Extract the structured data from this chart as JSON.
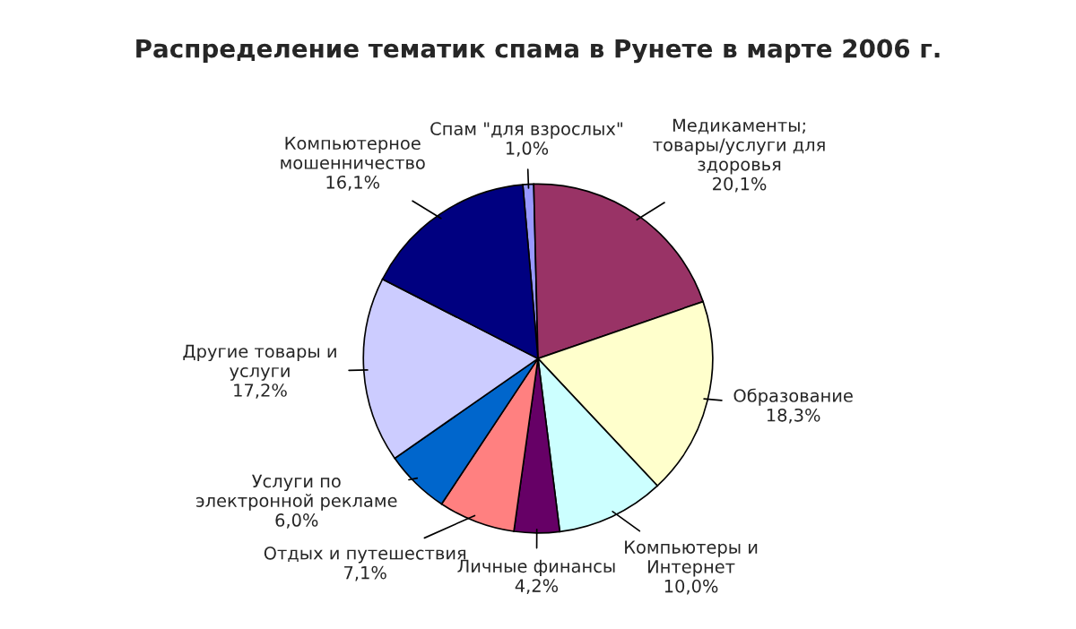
{
  "chart_data": {
    "type": "pie",
    "title": "Распределение тематик спама в Рунете в марте 2006 г.",
    "categories": [
      "Спам \"для взрослых\"",
      "Медикаменты;\nтовары/услуги для\nздоровья",
      "Образование",
      "Компьютеры и\nИнтернет",
      "Личные финансы",
      "Отдых и путешествия",
      "Услуги по\nэлектронной рекламе",
      "Другие товары и\nуслуги",
      "Компьютерное\nмошенничество"
    ],
    "values": [
      1.0,
      20.1,
      18.3,
      10.0,
      4.2,
      7.1,
      6.0,
      17.2,
      16.1
    ],
    "value_labels": [
      "1,0%",
      "20,1%",
      "18,3%",
      "10,0%",
      "4,2%",
      "7,1%",
      "6,0%",
      "17,2%",
      "16,1%"
    ],
    "colors": [
      "#9999ff",
      "#993366",
      "#ffffcc",
      "#ccffff",
      "#660066",
      "#ff8080",
      "#0066cc",
      "#ccccff",
      "#000080"
    ],
    "legend": false
  }
}
